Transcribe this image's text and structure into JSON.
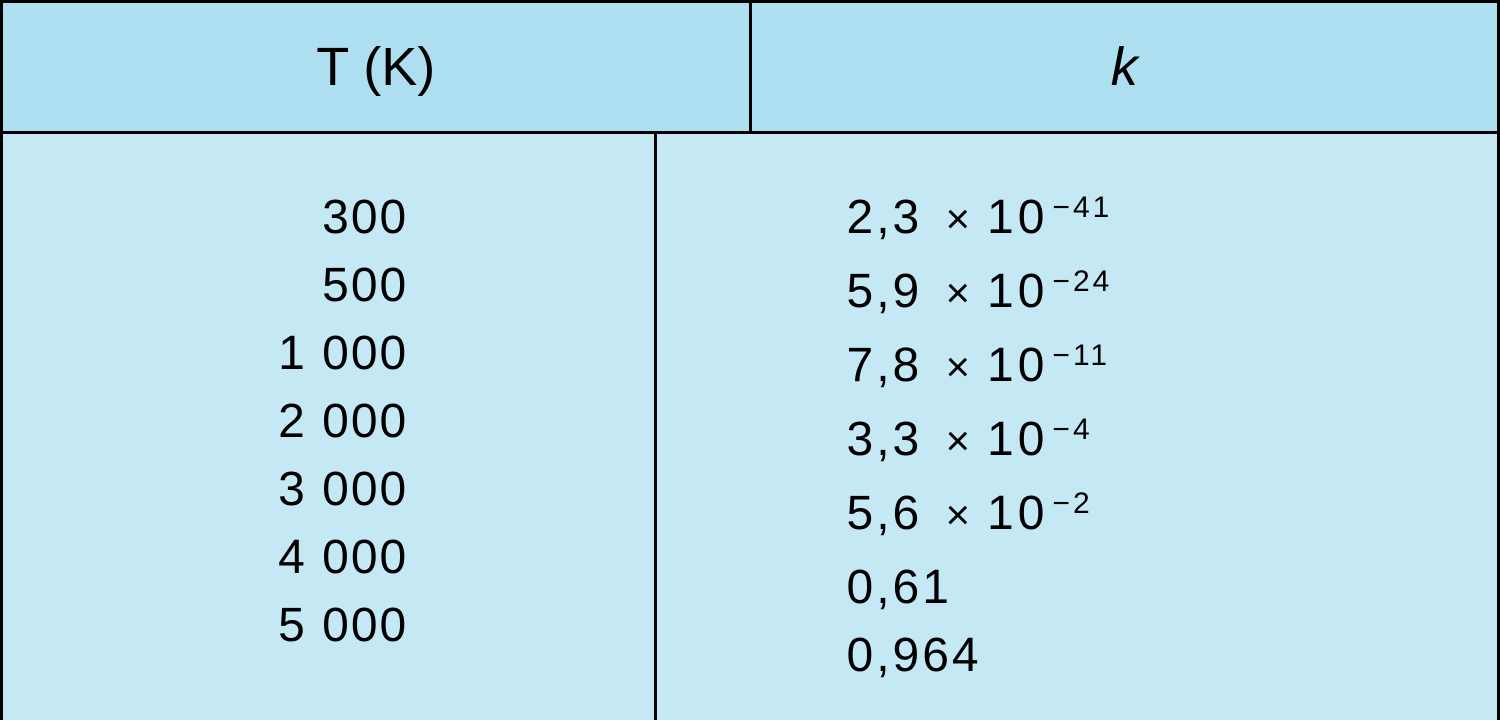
{
  "table": {
    "type": "table",
    "header_background_color": "#aedff0",
    "body_background_color": "#c5e8f5",
    "border_color": "#000000",
    "text_color": "#000000",
    "header_fontsize": 54,
    "body_fontsize": 48,
    "columns": [
      {
        "label": "T (K)",
        "italic_part": ""
      },
      {
        "label": "k",
        "italic": true
      }
    ],
    "rows": [
      {
        "t": "300",
        "k_coef": "2,3",
        "k_exp": "−41",
        "k_plain": null
      },
      {
        "t": "500",
        "k_coef": "5,9",
        "k_exp": "−24",
        "k_plain": null
      },
      {
        "t": "1 000",
        "k_coef": "7,8",
        "k_exp": "−11",
        "k_plain": null
      },
      {
        "t": "2 000",
        "k_coef": "3,3",
        "k_exp": "−4",
        "k_plain": null
      },
      {
        "t": "3 000",
        "k_coef": "5,6",
        "k_exp": "−2",
        "k_plain": null
      },
      {
        "t": "4 000",
        "k_coef": null,
        "k_exp": null,
        "k_plain": "0,61"
      },
      {
        "t": "5 000",
        "k_coef": null,
        "k_exp": null,
        "k_plain": "0,964"
      }
    ]
  }
}
